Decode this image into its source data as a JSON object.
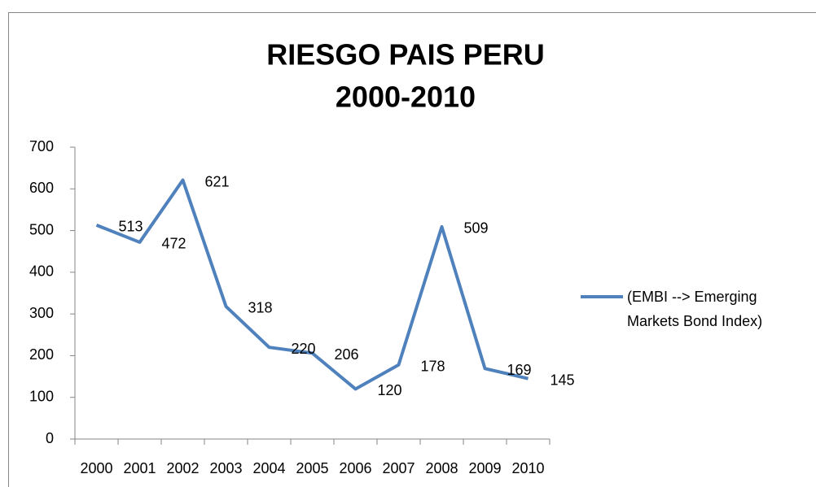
{
  "chart_data": {
    "type": "line",
    "title": [
      "RIESGO PAIS PERU",
      "2000-2010"
    ],
    "categories": [
      "2000",
      "2001",
      "2002",
      "2003",
      "2004",
      "2005",
      "2006",
      "2007",
      "2008",
      "2009",
      "2010"
    ],
    "series": [
      {
        "name": "(EMBI --> Emerging Markets Bond Index)",
        "color": "#4f81bd",
        "values": [
          513,
          472,
          621,
          318,
          220,
          206,
          120,
          178,
          509,
          169,
          145
        ]
      }
    ],
    "ylim": [
      0,
      700
    ],
    "yticks": [
      0,
      100,
      200,
      300,
      400,
      500,
      600,
      700
    ],
    "grid": false,
    "legend": "right"
  }
}
